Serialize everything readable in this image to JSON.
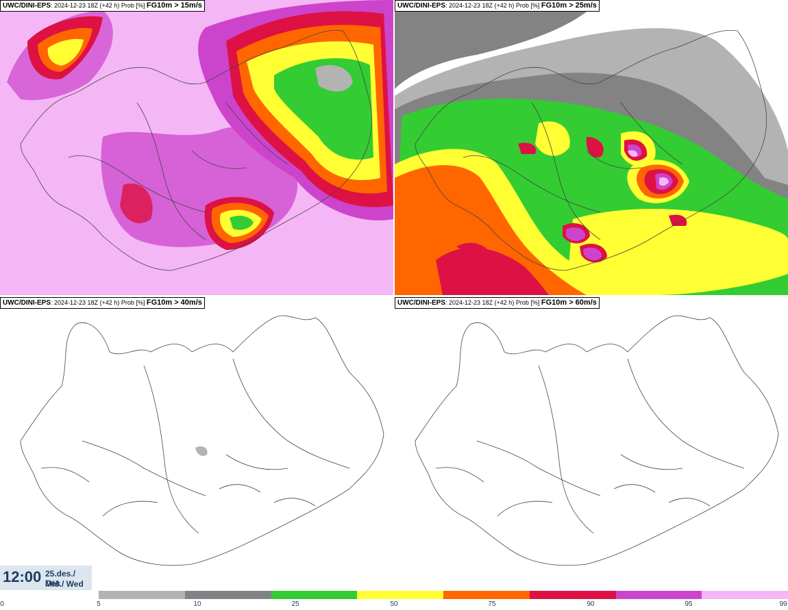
{
  "panels": [
    {
      "model": "UWC/DINI-EPS",
      "run": ": 2024-12-23 18Z (+42 h) Prob [%] ",
      "field": "FG10m > 15m/s"
    },
    {
      "model": "UWC/DINI-EPS",
      "run": ": 2024-12-23 18Z (+42 h) Prob [%] ",
      "field": "FG10m > 25m/s"
    },
    {
      "model": "UWC/DINI-EPS",
      "run": ": 2024-12-23 18Z (+42 h) Prob [%] ",
      "field": "FG10m > 40m/s"
    },
    {
      "model": "UWC/DINI-EPS",
      "run": ": 2024-12-23 18Z (+42 h) Prob [%] ",
      "field": "FG10m > 60m/s"
    }
  ],
  "valid_time": {
    "time": "12:00",
    "date_line1": "25.des./ Dec",
    "date_line2": "Mið./ Wed"
  },
  "colorbar": {
    "ticks": [
      "0",
      "5",
      "10",
      "25",
      "50",
      "75",
      "90",
      "95",
      "99"
    ],
    "colors": [
      "#b3b3b3",
      "#838383",
      "#33cc33",
      "#ffff33",
      "#ff6600",
      "#dd1144",
      "#cc44cc",
      "#f5b6f5"
    ]
  }
}
